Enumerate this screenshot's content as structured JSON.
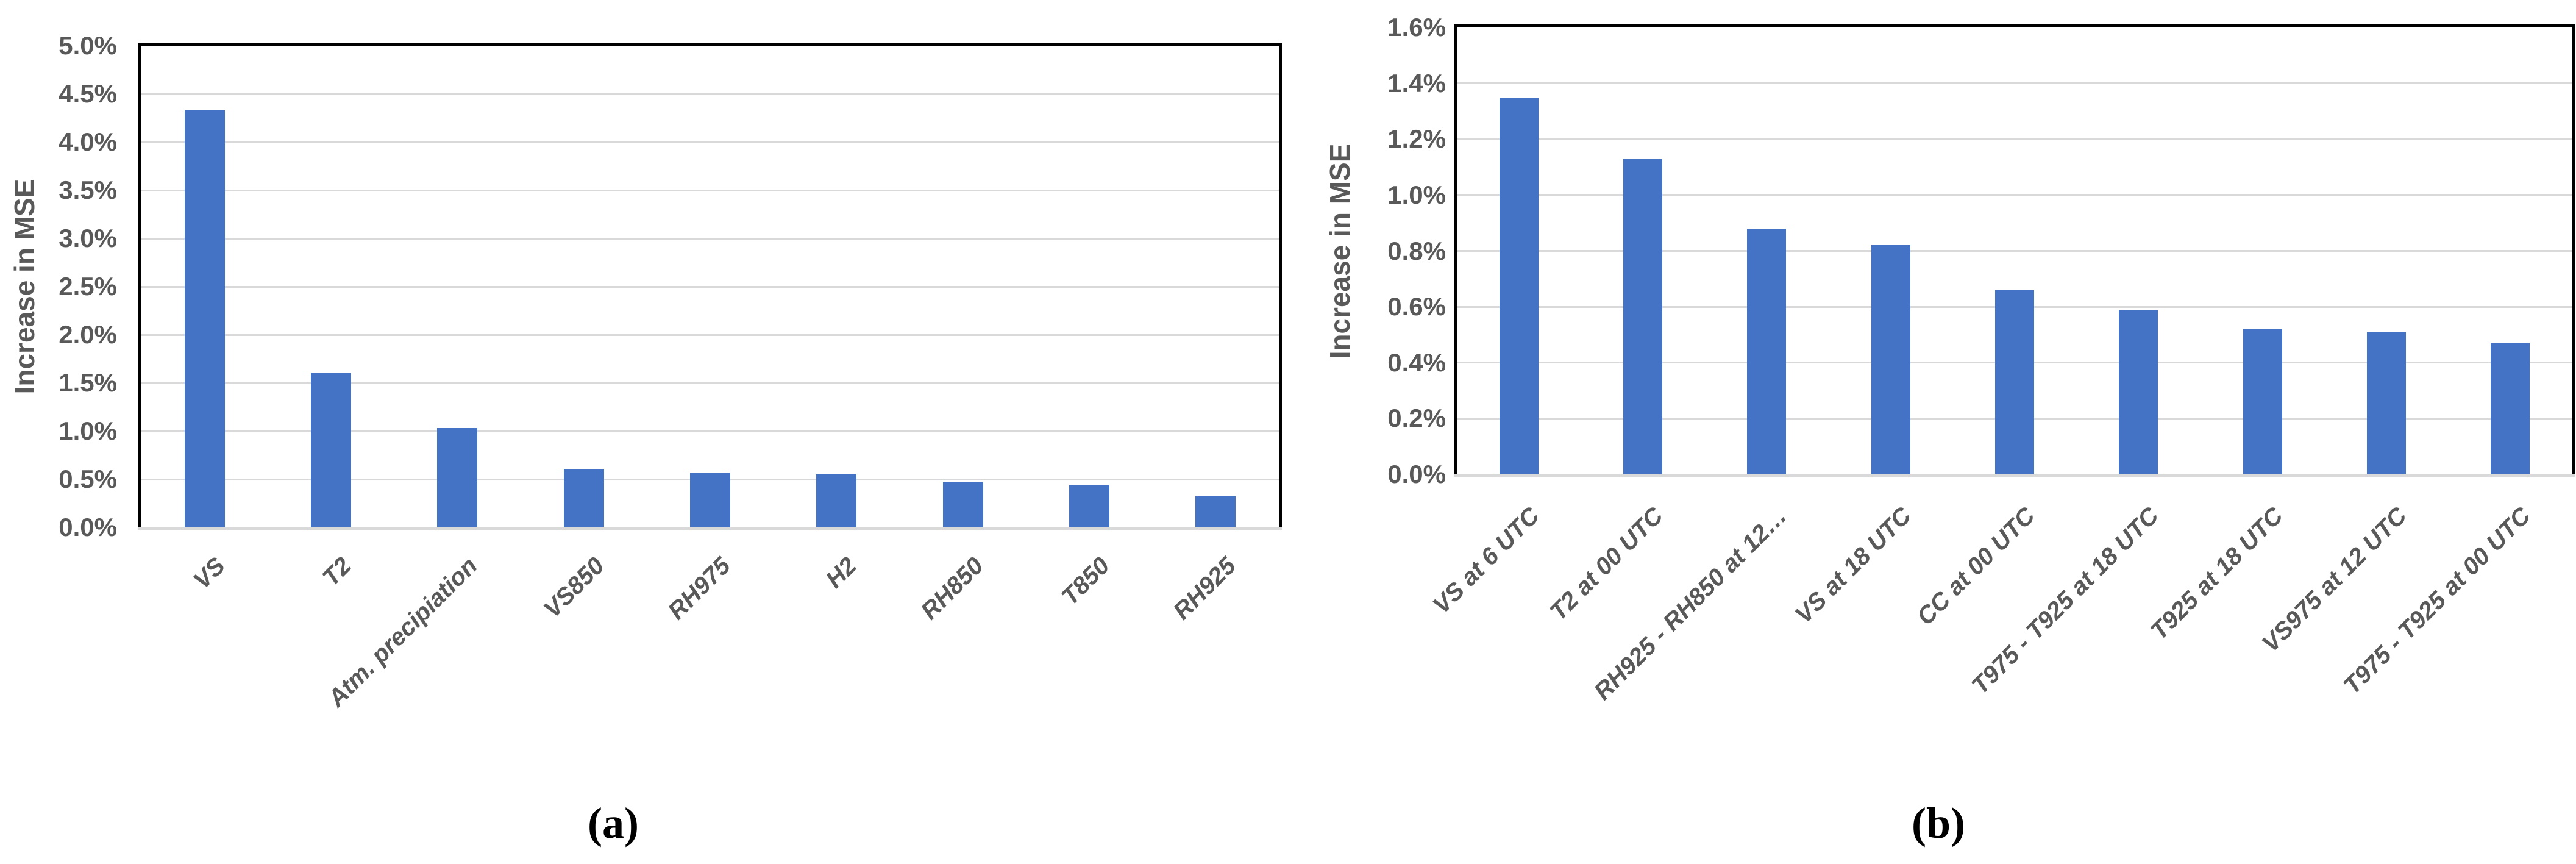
{
  "captions": {
    "a": "(a)",
    "b": "(b)"
  },
  "colors": {
    "bar": "#4472C4",
    "gridline": "#D9D9D9",
    "axis_text": "#595959",
    "plot_border": "#000000",
    "axis_line": "#D9D9D9",
    "caption_text": "#000000",
    "background": "#FFFFFF"
  },
  "chart_data": [
    {
      "type": "bar",
      "panel": "a",
      "title": "",
      "xlabel": "",
      "ylabel": "Increase in MSE",
      "categories": [
        "VS",
        "T2",
        "Atm. precipiation",
        "VS850",
        "RH975",
        "H2",
        "RH850",
        "T850",
        "RH925"
      ],
      "values": [
        4.33,
        1.61,
        1.03,
        0.61,
        0.57,
        0.55,
        0.47,
        0.44,
        0.33
      ],
      "value_unit": "%",
      "ylim": [
        0,
        5.0
      ],
      "ytick_step": 0.5,
      "yticks": [
        "0.0%",
        "0.5%",
        "1.0%",
        "1.5%",
        "2.0%",
        "2.5%",
        "3.0%",
        "3.5%",
        "4.0%",
        "4.5%",
        "5.0%"
      ],
      "grid": true,
      "legend": null,
      "bar_color": "#4472C4"
    },
    {
      "type": "bar",
      "panel": "b",
      "title": "",
      "xlabel": "",
      "ylabel": "Increase in MSE",
      "categories": [
        "VS at 6 UTC",
        "T2 at 00 UTC",
        "RH925 - RH850 at 12…",
        "VS at 18 UTC",
        "CC at 00 UTC",
        "T975 - T925 at 18 UTC",
        "T925 at 18 UTC",
        "VS975 at 12 UTC",
        "T975 - T925 at 00 UTC"
      ],
      "values": [
        1.35,
        1.13,
        0.88,
        0.82,
        0.66,
        0.59,
        0.52,
        0.51,
        0.47
      ],
      "value_unit": "%",
      "ylim": [
        0,
        1.6
      ],
      "ytick_step": 0.2,
      "yticks": [
        "0.0%",
        "0.2%",
        "0.4%",
        "0.6%",
        "0.8%",
        "1.0%",
        "1.2%",
        "1.4%",
        "1.6%"
      ],
      "grid": true,
      "legend": null,
      "bar_color": "#4472C4"
    }
  ]
}
